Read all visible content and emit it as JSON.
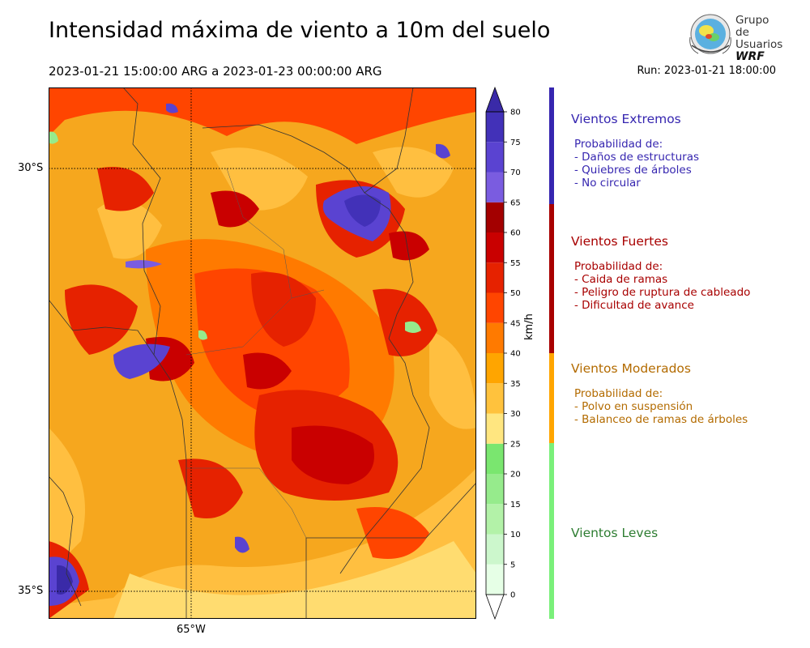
{
  "header": {
    "title": "Intensidad máxima de viento a 10m del suelo",
    "period": "2023-01-21 15:00:00 ARG  a  2023-01-23 00:00:00 ARG",
    "run": "Run: 2023-01-21 18:00:00"
  },
  "logo": {
    "line1": "Grupo de",
    "line2": "Usuarios",
    "line3": "WRF"
  },
  "map": {
    "lat_labels": [
      "30°S",
      "35°S"
    ],
    "lon_labels": [
      "65°W"
    ],
    "colors": {
      "background": "#f6a71e",
      "moderate": "#ffbf40",
      "light": "#ffe27a"
    }
  },
  "colorbar": {
    "unit": "km/h",
    "ticks": [
      "0",
      "5",
      "10",
      "15",
      "20",
      "25",
      "30",
      "35",
      "40",
      "45",
      "50",
      "55",
      "60",
      "65",
      "70",
      "75",
      "80"
    ],
    "colors": [
      "#e6ffe6",
      "#ccf7cc",
      "#b3f2a8",
      "#96eb8c",
      "#7ae66f",
      "#ffe680",
      "#ffc23d",
      "#ffa500",
      "#ff7a00",
      "#ff4500",
      "#e62200",
      "#c90000",
      "#a30000",
      "#7a5ce0",
      "#5a43d1",
      "#4231b8",
      "#3a2aa8"
    ]
  },
  "legend": {
    "categories": [
      {
        "title": "Vientos Extremos",
        "color": "#3626b0",
        "lines": [
          "Probabilidad de:",
          "- Daños de estructuras",
          "- Quiebres de árboles",
          "- No circular"
        ]
      },
      {
        "title": "Vientos Fuertes",
        "color": "#a80000",
        "lines": [
          "Probabilidad de:",
          "- Caida de ramas",
          "- Peligro de ruptura de cableado",
          "- Dificultad de avance"
        ]
      },
      {
        "title": "Vientos Moderados",
        "color": "#b36b00",
        "bar_color": "#ffa500",
        "lines": [
          "Probabilidad de:",
          "- Polvo en suspensión",
          "- Balanceo de ramas de árboles"
        ]
      },
      {
        "title": "Vientos Leves",
        "color": "#2e7d32",
        "bar_color": "#7af07a",
        "lines": []
      }
    ]
  }
}
